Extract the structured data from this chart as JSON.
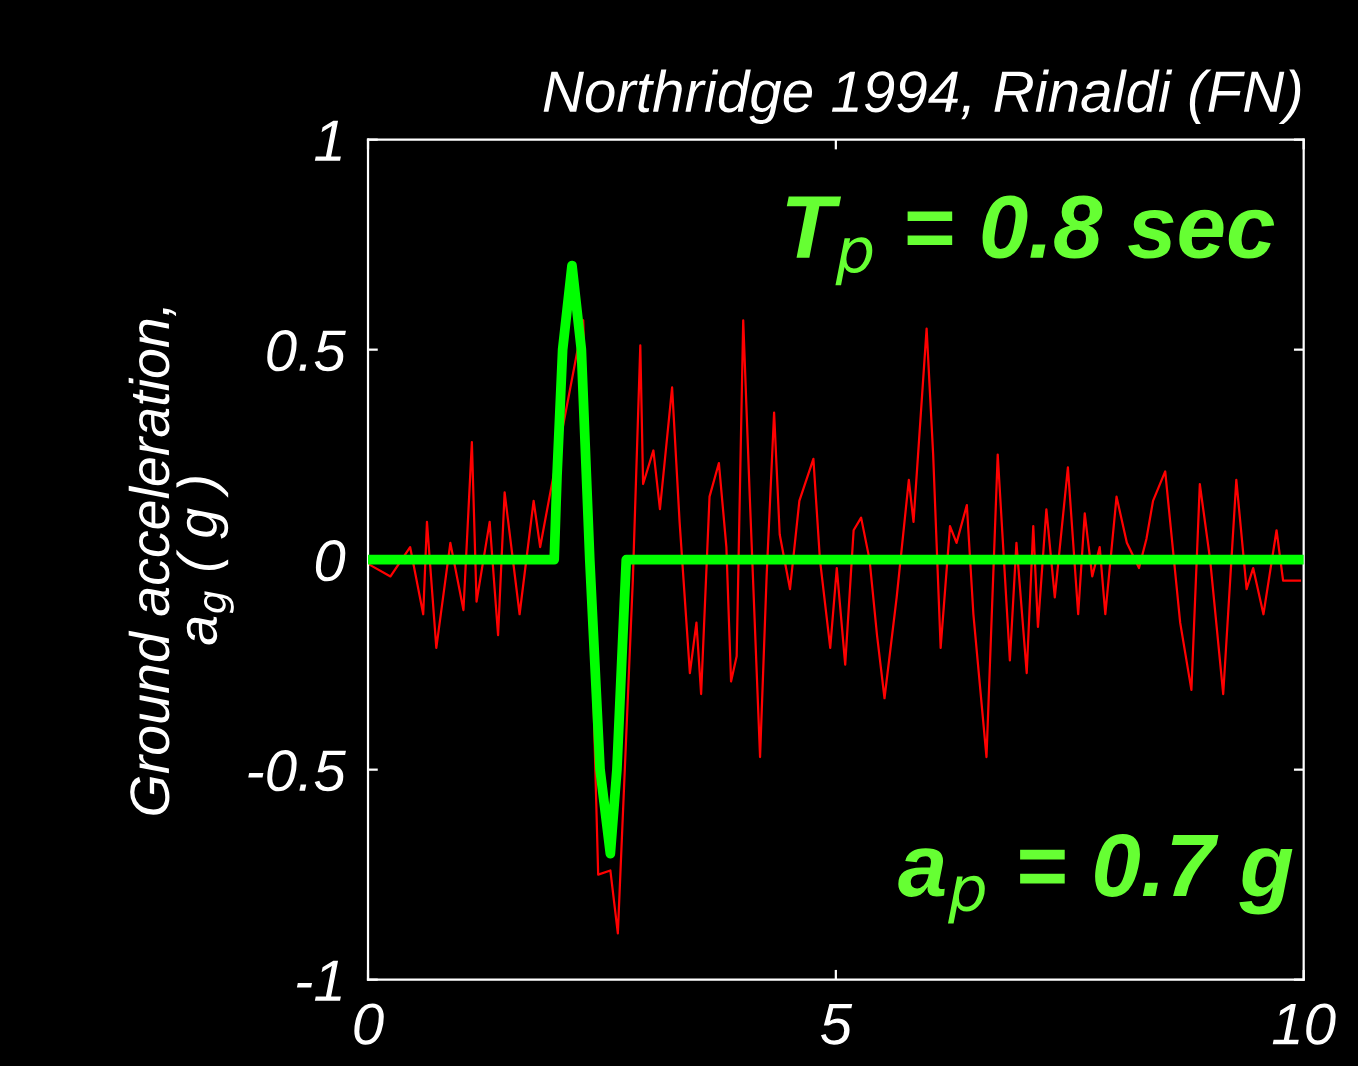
{
  "chart_data": {
    "type": "line",
    "title": "Northridge 1994, Rinaldi (FN)",
    "ylabel": "Ground acceleration,\na$_{g}$ ( g )",
    "xlim": [
      0,
      10
    ],
    "xticks": [
      0,
      5,
      10
    ],
    "ylim": [
      -1,
      1
    ],
    "yticks": [
      -1,
      -0.5,
      0,
      0.5,
      1
    ],
    "grid": false,
    "legend": false,
    "annotations": [
      "T$_{p}$ = 0.8 sec",
      "a$_{p}$ = 0.7 g"
    ],
    "series": [
      {
        "color": "#ff0000",
        "x": [
          0,
          0.24,
          0.45,
          0.59,
          0.63,
          0.73,
          0.88,
          1.02,
          1.11,
          1.16,
          1.3,
          1.39,
          1.46,
          1.62,
          1.77,
          1.84,
          1.94,
          2.3,
          2.46,
          2.59,
          2.67,
          2.83,
          2.91,
          2.94,
          3.05,
          3.12,
          3.25,
          3.33,
          3.44,
          3.51,
          3.56,
          3.65,
          3.75,
          3.83,
          3.88,
          3.94,
          4.01,
          4.08,
          4.19,
          4.26,
          4.34,
          4.4,
          4.51,
          4.61,
          4.76,
          4.83,
          4.94,
          5.01,
          5.1,
          5.19,
          5.27,
          5.36,
          5.44,
          5.52,
          5.65,
          5.78,
          5.83,
          5.97,
          6.04,
          6.12,
          6.22,
          6.29,
          6.4,
          6.47,
          6.61,
          6.73,
          6.86,
          6.93,
          7.04,
          7.11,
          7.16,
          7.25,
          7.34,
          7.48,
          7.59,
          7.66,
          7.74,
          7.82,
          7.88,
          8.0,
          8.11,
          8.24,
          8.32,
          8.39,
          8.52,
          8.68,
          8.8,
          8.89,
          9.0,
          9.14,
          9.28,
          9.39,
          9.46,
          9.57,
          9.71,
          9.78,
          9.96
        ],
        "values": [
          -0.01,
          -0.04,
          0.03,
          -0.13,
          0.09,
          -0.21,
          0.04,
          -0.12,
          0.28,
          -0.1,
          0.09,
          -0.18,
          0.16,
          -0.13,
          0.14,
          0.03,
          0.15,
          0.57,
          -0.75,
          -0.74,
          -0.89,
          -0.05,
          0.51,
          0.18,
          0.26,
          0.12,
          0.41,
          0.09,
          -0.27,
          -0.15,
          -0.32,
          0.15,
          0.23,
          0.03,
          -0.29,
          -0.23,
          0.57,
          0.15,
          -0.47,
          -0.04,
          0.35,
          0.06,
          -0.07,
          0.14,
          0.24,
          0.0,
          -0.21,
          -0.02,
          -0.25,
          0.07,
          0.1,
          0.0,
          -0.18,
          -0.33,
          -0.09,
          0.19,
          0.09,
          0.55,
          0.25,
          -0.21,
          0.08,
          0.04,
          0.13,
          -0.13,
          -0.47,
          0.25,
          -0.24,
          0.04,
          -0.27,
          0.08,
          -0.16,
          0.12,
          -0.09,
          0.22,
          -0.13,
          0.11,
          -0.04,
          0.03,
          -0.13,
          0.15,
          0.04,
          -0.02,
          0.05,
          0.14,
          0.21,
          -0.15,
          -0.31,
          0.18,
          0.0,
          -0.32,
          0.19,
          -0.07,
          -0.02,
          -0.13,
          0.07,
          -0.05,
          -0.05
        ]
      },
      {
        "color": "#00ff00",
        "x": [
          0,
          1.99,
          2.02,
          2.08,
          2.18,
          2.28,
          2.37,
          2.48,
          2.59,
          2.66,
          2.76,
          10
        ],
        "values": [
          0,
          0,
          0.2,
          0.5,
          0.7,
          0.5,
          0,
          -0.5,
          -0.7,
          -0.5,
          0,
          0
        ]
      }
    ]
  }
}
